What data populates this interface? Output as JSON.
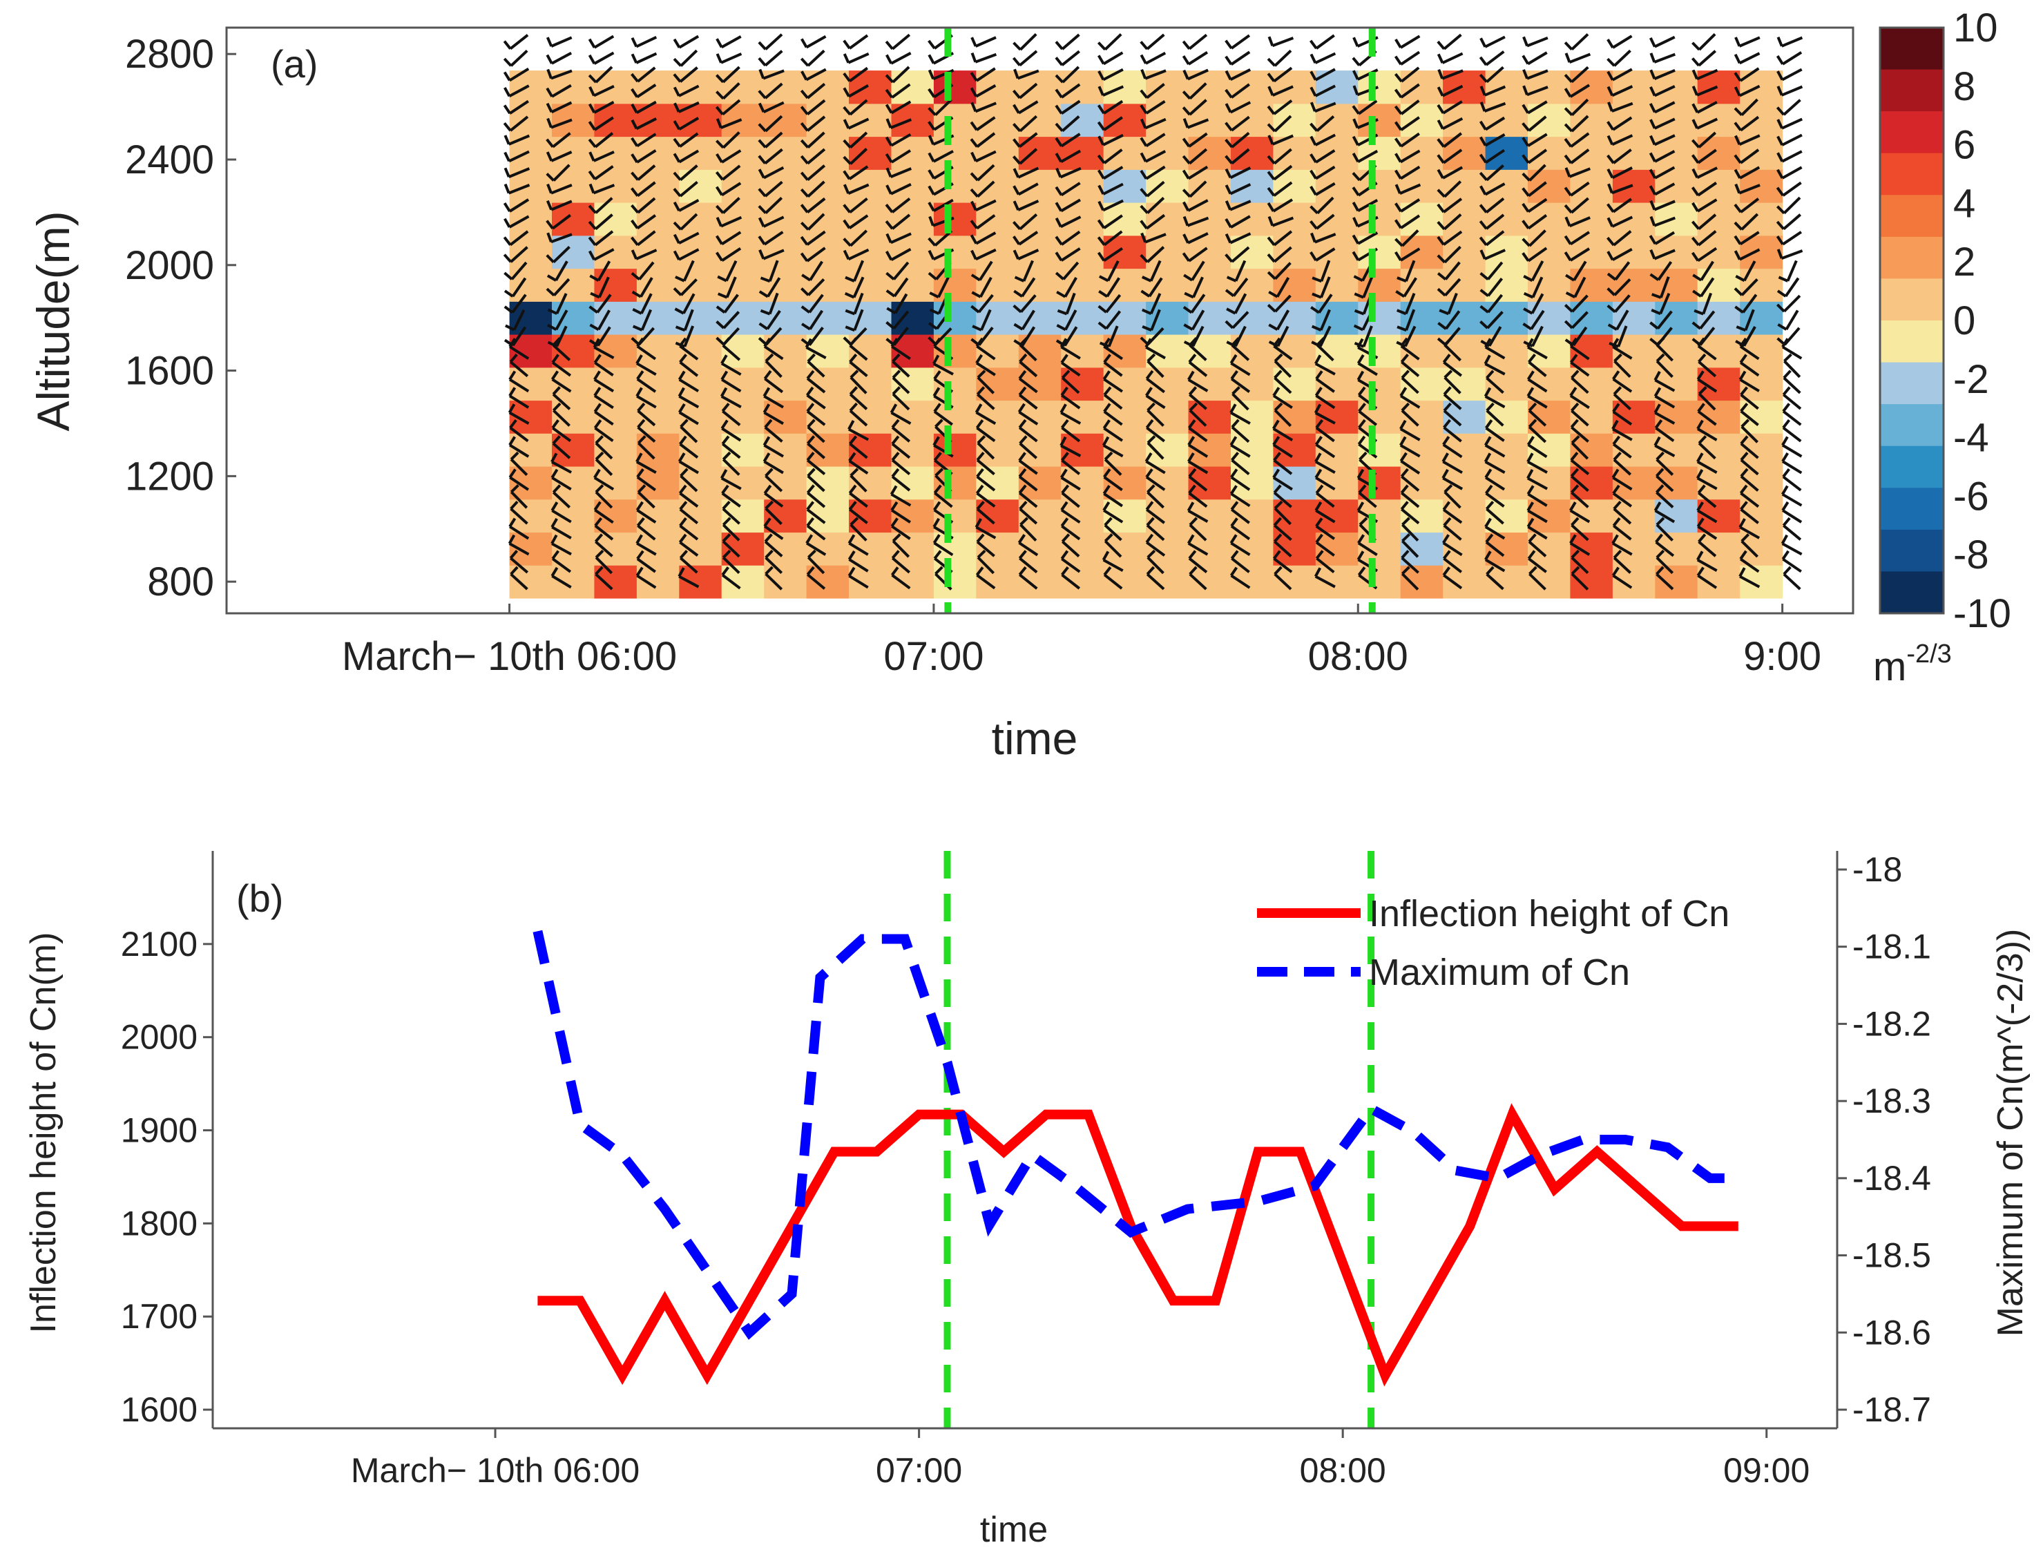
{
  "chart_data": [
    {
      "type": "heatmap",
      "panel_label": "(a)",
      "title": "",
      "xlabel": "time",
      "ylabel": "Altitude(m)",
      "x_tick_labels": [
        "March− 10th 06:00",
        "07:00",
        "08:00",
        "9:00"
      ],
      "y_ticks": [
        800,
        1200,
        1600,
        2000,
        2400,
        2800
      ],
      "xlim_min": [
        -40,
        190
      ],
      "ylim": [
        680,
        2900
      ],
      "x_cells_min": [
        0,
        6,
        12,
        18,
        24,
        30,
        36,
        42,
        48,
        54,
        60,
        66,
        72,
        78,
        84,
        90,
        96,
        102,
        108,
        114,
        120,
        126,
        132,
        138,
        144,
        150,
        156,
        162,
        168,
        174
      ],
      "y_cells_m": [
        800,
        925,
        1050,
        1175,
        1300,
        1425,
        1550,
        1675,
        1800,
        1925,
        2050,
        2175,
        2300,
        2425,
        2550,
        2675
      ],
      "cell_value_range": [
        -10,
        10
      ],
      "dashed_markers": [
        "07:02",
        "08:02"
      ],
      "marker_color": "#22dd22",
      "colorbar": {
        "ticks": [
          10,
          8,
          6,
          4,
          2,
          0,
          -2,
          -4,
          -6,
          -8,
          -10
        ],
        "unit": "m",
        "unit_exponent": "-2/3",
        "colors": [
          "#5a0c12",
          "#a8171e",
          "#d7262a",
          "#ed4b2c",
          "#f3773a",
          "#f69b58",
          "#f8c583",
          "#f8e9a0",
          "#a6c8e3",
          "#67b0d6",
          "#2c8fc4",
          "#1a6eaf",
          "#124f8c",
          "#0b2f5a"
        ]
      },
      "wind_barbs": true
    },
    {
      "type": "line",
      "panel_label": "(b)",
      "xlabel": "time",
      "ylabel": "Inflection height of Cn(m)",
      "ylabel_right": "Maximum of Cn(m^(-2/3))",
      "x_tick_labels": [
        "March− 10th 06:00",
        "07:00",
        "08:00",
        "09:00"
      ],
      "xlim_min": [
        -40,
        190
      ],
      "ylim": [
        1580,
        2200
      ],
      "ylim_right": [
        -18.7,
        -18.0
      ],
      "y_ticks": [
        1600,
        1700,
        1800,
        1900,
        2000,
        2100
      ],
      "y_ticks_right": [
        -18,
        -18.1,
        -18.2,
        -18.3,
        -18.4,
        -18.5,
        -18.6,
        -18.7
      ],
      "dashed_markers": [
        "07:04",
        "08:04"
      ],
      "series": [
        {
          "name": "Inflection height of Cn",
          "axis": "left",
          "color": "#ff0000",
          "style": "solid",
          "x_min": [
            6,
            12,
            18,
            24,
            30,
            36,
            42,
            48,
            54,
            60,
            66,
            72,
            78,
            84,
            90,
            96,
            102,
            108,
            114,
            120,
            126,
            132,
            138,
            144,
            150,
            156,
            162,
            168,
            174,
            176
          ],
          "values": [
            1717,
            1717,
            1637,
            1717,
            1637,
            1717,
            1797,
            1877,
            1877,
            1917,
            1917,
            1877,
            1917,
            1917,
            1797,
            1717,
            1717,
            1877,
            1877,
            1757,
            1637,
            1717,
            1797,
            1917,
            1837,
            1877,
            1837,
            1797,
            1797,
            1797
          ]
        },
        {
          "name": "Maximum of Cn",
          "axis": "right",
          "color": "#0000ff",
          "style": "dashed",
          "x_min": [
            6,
            12,
            18,
            24,
            30,
            36,
            42,
            46,
            52,
            58,
            64,
            70,
            76,
            82,
            90,
            98,
            108,
            116,
            124,
            130,
            136,
            142,
            148,
            154,
            160,
            166,
            172,
            176
          ],
          "values": [
            -18.08,
            -18.33,
            -18.37,
            -18.44,
            -18.52,
            -18.6,
            -18.55,
            -18.14,
            -18.09,
            -18.09,
            -18.25,
            -18.46,
            -18.37,
            -18.41,
            -18.47,
            -18.44,
            -18.43,
            -18.41,
            -18.31,
            -18.34,
            -18.39,
            -18.4,
            -18.37,
            -18.35,
            -18.35,
            -18.36,
            -18.4,
            -18.4
          ]
        }
      ],
      "legend": {
        "position": "top-right",
        "entries": [
          "Inflection height of Cn",
          "Maximum of Cn"
        ]
      }
    }
  ]
}
